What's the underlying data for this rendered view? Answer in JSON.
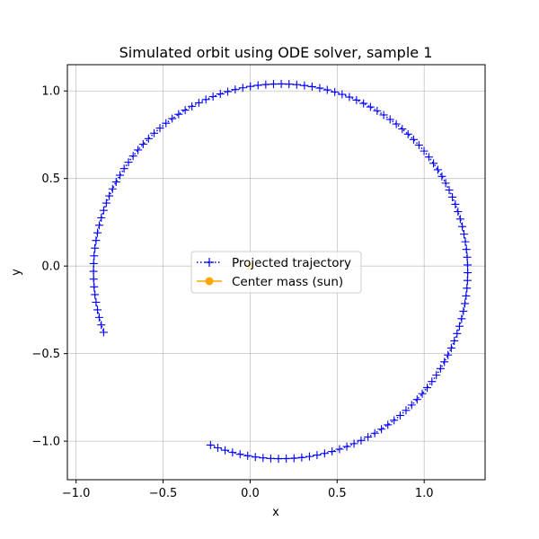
{
  "chart_data": {
    "type": "line",
    "title": "Simulated orbit using ODE solver, sample 1",
    "xlabel": "x",
    "ylabel": "y",
    "xlim": [
      -1.05,
      1.35
    ],
    "ylim": [
      -1.22,
      1.15
    ],
    "xticks": [
      -1.0,
      -0.5,
      0.0,
      0.5,
      1.0
    ],
    "yticks": [
      -1.0,
      -0.5,
      0.0,
      0.5,
      1.0
    ],
    "xtick_labels": [
      "−1.0",
      "−0.5",
      "0.0",
      "0.5",
      "1.0"
    ],
    "ytick_labels": [
      "−1.0",
      "−0.5",
      "0.0",
      "0.5",
      "1.0"
    ],
    "grid": true,
    "legend_position": "center",
    "series": [
      {
        "name": "Projected trajectory",
        "color": "#0000ff",
        "marker": "plus",
        "linestyle": "dotted",
        "ellipse": {
          "center_x": 0.175,
          "center_y": -0.03,
          "semi_x": 1.075,
          "semi_y": 1.07,
          "start_deg": -112,
          "end_deg": 199,
          "points": 132
        }
      },
      {
        "name": "Center mass (sun)",
        "color": "#ffa500",
        "marker": "circle",
        "linestyle": "solid",
        "x": [
          0.0
        ],
        "y": [
          0.0
        ]
      }
    ]
  }
}
